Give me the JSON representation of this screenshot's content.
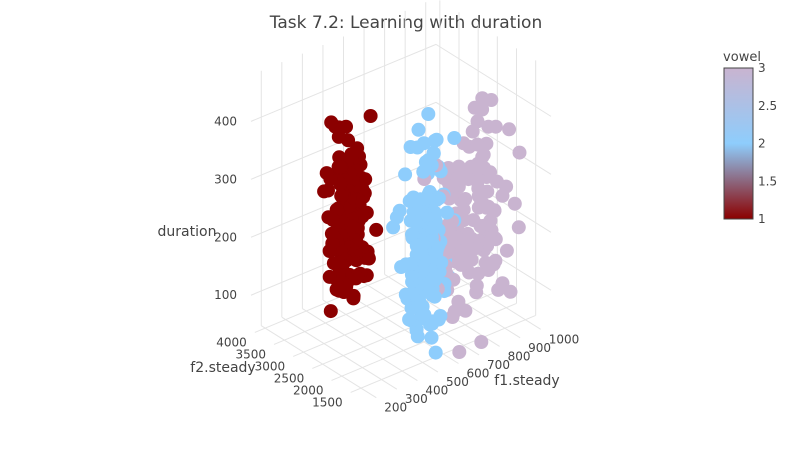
{
  "chart_data": {
    "type": "scatter3d",
    "title": "Task 7.2: Learning with duration",
    "axes": {
      "x": {
        "label": "f1.steady",
        "ticks": [
          200,
          300,
          400,
          500,
          600,
          700,
          800,
          900,
          1000
        ],
        "range": [
          150,
          1050
        ]
      },
      "y": {
        "label": "f2.steady",
        "ticks": [
          1500,
          2000,
          2500,
          3000,
          3500,
          4000
        ],
        "range": [
          1100,
          4100
        ]
      },
      "z": {
        "label": "duration",
        "ticks": [
          100,
          200,
          300,
          400
        ],
        "range": [
          40,
          480
        ]
      }
    },
    "colorbar": {
      "title": "vowel",
      "ticks": [
        1,
        1.5,
        2,
        2.5,
        3
      ],
      "tick_labels": [
        "1",
        "1.5",
        "2",
        "2.5",
        "3"
      ],
      "range": [
        1,
        3
      ],
      "colorscale": [
        [
          0,
          "#8b0000"
        ],
        [
          0.5,
          "#8ecdfc"
        ],
        [
          1,
          "#c9b4d0"
        ]
      ]
    },
    "series": [
      {
        "vowel": 1,
        "color": "#8b0000",
        "approx_count": 420,
        "f1_range": [
          250,
          450
        ],
        "f2_range": [
          2000,
          3200
        ],
        "duration_range": [
          80,
          440
        ]
      },
      {
        "vowel": 2,
        "color": "#8ecdfc",
        "approx_count": 420,
        "f1_range": [
          450,
          700
        ],
        "f2_range": [
          1300,
          2400
        ],
        "duration_range": [
          40,
          420
        ]
      },
      {
        "vowel": 3,
        "color": "#c9b4d0",
        "approx_count": 420,
        "f1_range": [
          500,
          1000
        ],
        "f2_range": [
          1100,
          2000
        ],
        "duration_range": [
          40,
          450
        ]
      }
    ],
    "grid": true,
    "legend": "right-colorbar"
  }
}
